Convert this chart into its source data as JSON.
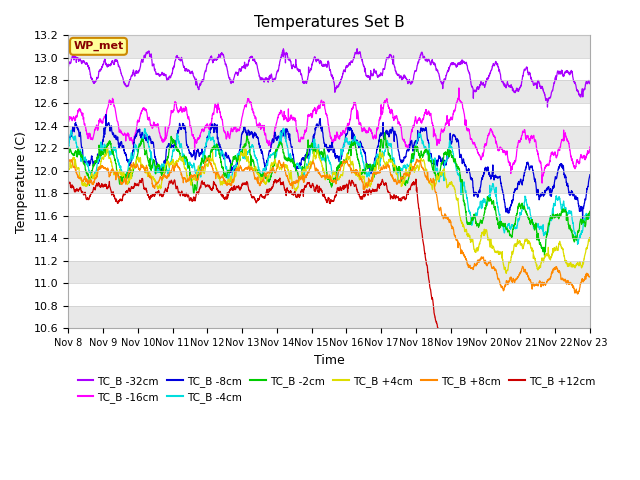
{
  "title": "Temperatures Set B",
  "xlabel": "Time",
  "ylabel": "Temperature (C)",
  "ylim": [
    10.6,
    13.2
  ],
  "xlim": [
    0,
    15
  ],
  "yticks": [
    10.6,
    10.8,
    11.0,
    11.2,
    11.4,
    11.6,
    11.8,
    12.0,
    12.2,
    12.4,
    12.6,
    12.8,
    13.0,
    13.2
  ],
  "xtick_labels": [
    "Nov 8",
    "Nov 9",
    "Nov 10",
    "Nov 11",
    "Nov 12",
    "Nov 13",
    "Nov 14",
    "Nov 15",
    "Nov 16",
    "Nov 17",
    "Nov 18",
    "Nov 19",
    "Nov 20",
    "Nov 21",
    "Nov 22",
    "Nov 23"
  ],
  "series": [
    {
      "label": "TC_B -32cm",
      "color": "#aa00ff",
      "base": 12.9,
      "amplitude": 0.1,
      "freq": 1.0,
      "noise": 0.04,
      "drop_start": 11.5,
      "drop_amount": 0.12,
      "drop_speed": 3.0
    },
    {
      "label": "TC_B -16cm",
      "color": "#ff00ff",
      "base": 12.42,
      "amplitude": 0.13,
      "freq": 1.0,
      "noise": 0.05,
      "drop_start": 11.5,
      "drop_amount": 0.25,
      "drop_speed": 2.5
    },
    {
      "label": "TC_B -8cm",
      "color": "#0000dd",
      "base": 12.22,
      "amplitude": 0.14,
      "freq": 1.0,
      "noise": 0.06,
      "drop_start": 11.0,
      "drop_amount": 0.35,
      "drop_speed": 2.5
    },
    {
      "label": "TC_B -4cm",
      "color": "#00dddd",
      "base": 12.12,
      "amplitude": 0.13,
      "freq": 1.0,
      "noise": 0.06,
      "drop_start": 11.0,
      "drop_amount": 0.55,
      "drop_speed": 2.0
    },
    {
      "label": "TC_B -2cm",
      "color": "#00cc00",
      "base": 12.08,
      "amplitude": 0.13,
      "freq": 1.0,
      "noise": 0.06,
      "drop_start": 11.0,
      "drop_amount": 0.55,
      "drop_speed": 2.0
    },
    {
      "label": "TC_B +4cm",
      "color": "#dddd00",
      "base": 12.0,
      "amplitude": 0.1,
      "freq": 1.0,
      "noise": 0.05,
      "drop_start": 10.8,
      "drop_amount": 0.75,
      "drop_speed": 1.8
    },
    {
      "label": "TC_B +8cm",
      "color": "#ff8800",
      "base": 11.97,
      "amplitude": 0.07,
      "freq": 1.0,
      "noise": 0.04,
      "drop_start": 10.5,
      "drop_amount": 0.95,
      "drop_speed": 1.5
    },
    {
      "label": "TC_B +12cm",
      "color": "#cc0000",
      "base": 11.82,
      "amplitude": 0.06,
      "freq": 1.0,
      "noise": 0.04,
      "drop_start": 10.0,
      "drop_amount": 2.2,
      "drop_speed": 1.2
    }
  ],
  "legend_box_label": "WP_met",
  "legend_box_color": "#ffff99",
  "legend_box_border": "#cc8800",
  "background_color": "#ffffff",
  "band_color": "#e8e8e8",
  "grid_color": "#cccccc"
}
